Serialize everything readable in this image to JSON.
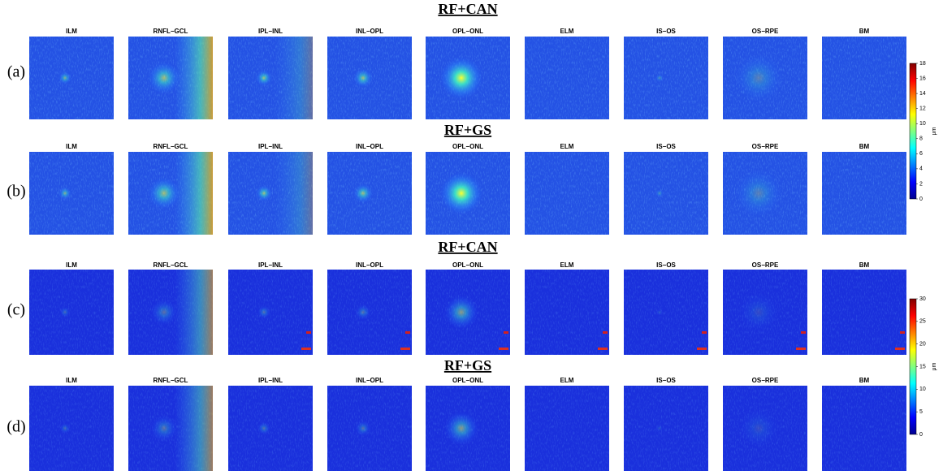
{
  "rows": [
    {
      "label": "(a)",
      "title": "RF+CAN",
      "panels": [
        "ILM",
        "RNFL−GCL",
        "IPL−INL",
        "INL−OPL",
        "OPL−ONL",
        "ELM",
        "IS−OS",
        "OS−RPE",
        "BM"
      ]
    },
    {
      "label": "(b)",
      "title": "RF+GS",
      "panels": [
        "ILM",
        "RNFL−GCL",
        "IPL−INL",
        "INL−OPL",
        "OPL−ONL",
        "ELM",
        "IS−OS",
        "OS−RPE",
        "BM"
      ]
    },
    {
      "label": "(c)",
      "title": "RF+CAN",
      "panels": [
        "ILM",
        "RNFL−GCL",
        "IPL−INL",
        "INL−OPL",
        "OPL−ONL",
        "ELM",
        "IS−OS",
        "OS−RPE",
        "BM"
      ]
    },
    {
      "label": "(d)",
      "title": "RF+GS",
      "panels": [
        "ILM",
        "RNFL−GCL",
        "IPL−INL",
        "INL−OPL",
        "OPL−ONL",
        "ELM",
        "IS−OS",
        "OS−RPE",
        "BM"
      ]
    }
  ],
  "colorbars": [
    {
      "ticks": [
        "0",
        "2",
        "4",
        "6",
        "8",
        "10",
        "12",
        "14",
        "16",
        "18"
      ],
      "unit": "μm"
    },
    {
      "ticks": [
        "0",
        "5",
        "10",
        "15",
        "20",
        "25",
        "30"
      ],
      "unit": "μm"
    }
  ]
}
